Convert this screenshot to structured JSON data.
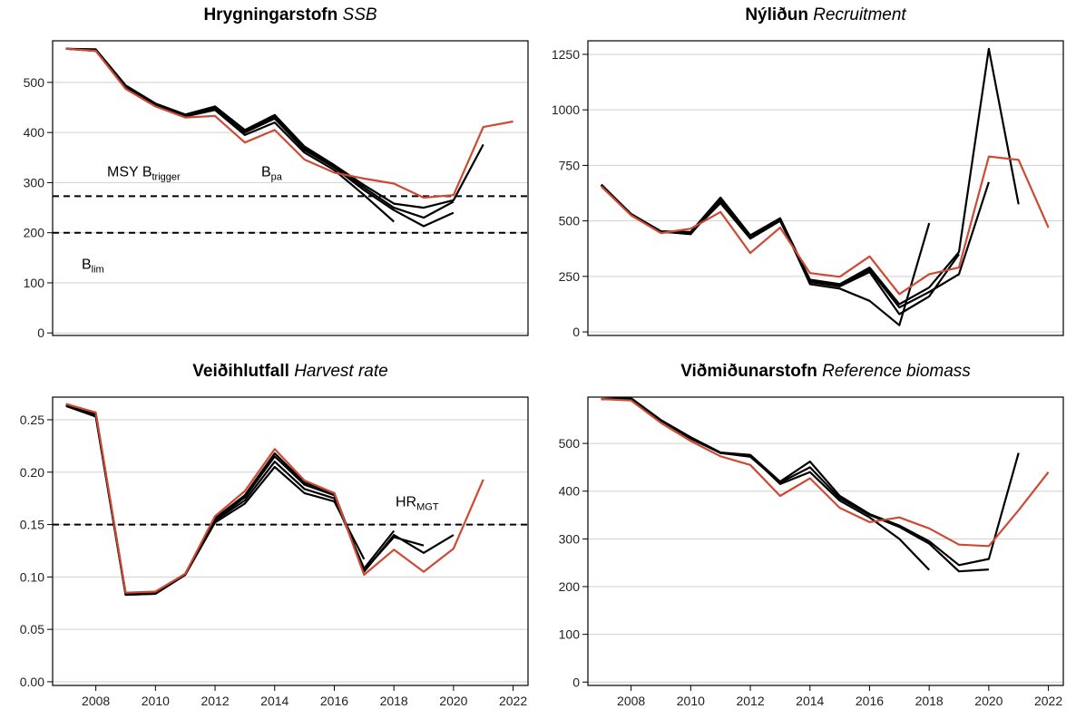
{
  "chart_data": [
    {
      "type": "line",
      "title": "Hrygningarstofn",
      "subtitle": "SSB",
      "x": [
        2007,
        2008,
        2009,
        2010,
        2011,
        2012,
        2013,
        2014,
        2015,
        2016,
        2017,
        2018,
        2019,
        2020,
        2021,
        2022
      ],
      "xlim": [
        2006.55,
        2022.5
      ],
      "ylim": [
        -5,
        583
      ],
      "yticks": [
        0,
        100,
        200,
        300,
        400,
        500
      ],
      "grid": true,
      "series": [
        {
          "color": "#000000",
          "values": [
            567,
            563,
            490,
            455,
            432,
            445,
            395,
            420,
            360,
            325,
            275,
            222,
            null,
            null,
            null,
            null
          ]
        },
        {
          "color": "#000000",
          "values": [
            567,
            564,
            492,
            456,
            434,
            448,
            400,
            428,
            365,
            330,
            285,
            245,
            213,
            240,
            null,
            null
          ]
        },
        {
          "color": "#000000",
          "values": [
            567,
            565,
            493,
            457,
            435,
            450,
            403,
            432,
            368,
            332,
            290,
            250,
            230,
            262,
            null,
            null
          ]
        },
        {
          "color": "#000000",
          "values": [
            567,
            566,
            494,
            458,
            436,
            452,
            405,
            435,
            372,
            335,
            295,
            258,
            250,
            265,
            376,
            null
          ]
        },
        {
          "color": "#cd4a34",
          "values": [
            567,
            563,
            487,
            452,
            430,
            433,
            380,
            405,
            346,
            320,
            308,
            298,
            270,
            275,
            411,
            422
          ]
        }
      ],
      "hlines": [
        {
          "value": 273,
          "labels": [
            {
              "main": "MSY B",
              "sub": "trigger"
            },
            {
              "main": "B",
              "sub": "pa"
            }
          ]
        },
        {
          "value": 200,
          "labels": [
            {
              "main": "B",
              "sub": "lim"
            }
          ]
        }
      ]
    },
    {
      "type": "line",
      "title": "Nýliðun",
      "subtitle": "Recruitment",
      "x": [
        2007,
        2008,
        2009,
        2010,
        2011,
        2012,
        2013,
        2014,
        2015,
        2016,
        2017,
        2018,
        2019,
        2020,
        2021,
        2022
      ],
      "xlim": [
        2006.55,
        2022.5
      ],
      "ylim": [
        -16,
        1311
      ],
      "yticks": [
        0,
        250,
        500,
        750,
        1000,
        1250
      ],
      "grid": true,
      "series": [
        {
          "color": "#000000",
          "values": [
            660,
            530,
            452,
            440,
            600,
            430,
            510,
            215,
            195,
            140,
            30,
            490,
            null,
            null,
            null,
            null
          ]
        },
        {
          "color": "#000000",
          "values": [
            660,
            528,
            450,
            445,
            580,
            420,
            500,
            225,
            205,
            270,
            80,
            160,
            350,
            null,
            null,
            null
          ]
        },
        {
          "color": "#000000",
          "values": [
            662,
            530,
            452,
            448,
            590,
            425,
            505,
            230,
            210,
            280,
            110,
            180,
            260,
            675,
            null,
            null
          ]
        },
        {
          "color": "#000000",
          "values": [
            664,
            531,
            453,
            450,
            605,
            435,
            512,
            235,
            215,
            290,
            125,
            200,
            360,
            1275,
            575,
            null
          ]
        },
        {
          "color": "#cd4a34",
          "values": [
            655,
            525,
            445,
            465,
            540,
            355,
            470,
            265,
            248,
            340,
            170,
            260,
            290,
            790,
            775,
            470
          ]
        }
      ],
      "hlines": []
    },
    {
      "type": "line",
      "title": "Veiðihlutfall",
      "subtitle": "Harvest rate",
      "x": [
        2007,
        2008,
        2009,
        2010,
        2011,
        2012,
        2013,
        2014,
        2015,
        2016,
        2017,
        2018,
        2019,
        2020,
        2021,
        2022
      ],
      "xlim": [
        2006.55,
        2022.5
      ],
      "ylim": [
        -0.0035,
        0.2716
      ],
      "yticks": [
        {
          "value": 0,
          "label": "0.00"
        },
        0.05,
        {
          "value": 0.1,
          "label": "0.10"
        },
        0.15,
        {
          "value": 0.2,
          "label": "0.20"
        },
        0.25
      ],
      "xticks": [
        2008,
        2010,
        2012,
        2014,
        2016,
        2018,
        2020,
        2022
      ],
      "grid": true,
      "series": [
        {
          "color": "#000000",
          "values": [
            0.263,
            0.253,
            0.083,
            0.084,
            0.102,
            0.152,
            0.17,
            0.205,
            0.18,
            0.172,
            0.117,
            null,
            null,
            null,
            null,
            null
          ]
        },
        {
          "color": "#000000",
          "values": [
            0.264,
            0.254,
            0.083,
            0.084,
            0.102,
            0.154,
            0.173,
            0.21,
            0.184,
            0.175,
            0.108,
            0.144,
            null,
            null,
            null,
            null
          ]
        },
        {
          "color": "#000000",
          "values": [
            0.264,
            0.255,
            0.084,
            0.085,
            0.103,
            0.155,
            0.176,
            0.215,
            0.188,
            0.178,
            0.106,
            0.138,
            0.13,
            null,
            null,
            null
          ]
        },
        {
          "color": "#000000",
          "values": [
            0.265,
            0.256,
            0.084,
            0.085,
            0.103,
            0.156,
            0.178,
            0.218,
            0.19,
            0.18,
            0.105,
            0.14,
            0.123,
            0.14,
            null,
            null
          ]
        },
        {
          "color": "#cd4a34",
          "values": [
            0.265,
            0.257,
            0.085,
            0.086,
            0.103,
            0.158,
            0.182,
            0.222,
            0.192,
            0.18,
            0.102,
            0.126,
            0.105,
            0.127,
            0.193,
            null
          ]
        }
      ],
      "hlines": [
        {
          "value": 0.15,
          "labels": [
            {
              "main": "HR",
              "sub": "MGT"
            }
          ]
        }
      ]
    },
    {
      "type": "line",
      "title": "Viðmiðunarstofn",
      "subtitle": "Reference biomass",
      "x": [
        2007,
        2008,
        2009,
        2010,
        2011,
        2012,
        2013,
        2014,
        2015,
        2016,
        2017,
        2018,
        2019,
        2020,
        2021,
        2022
      ],
      "xlim": [
        2006.55,
        2022.5
      ],
      "ylim": [
        -7,
        597
      ],
      "yticks": [
        0,
        100,
        200,
        300,
        400,
        500
      ],
      "xticks": [
        2008,
        2010,
        2012,
        2014,
        2016,
        2018,
        2020,
        2022
      ],
      "grid": true,
      "series": [
        {
          "color": "#000000",
          "values": [
            593,
            593,
            548,
            510,
            480,
            475,
            415,
            440,
            380,
            345,
            300,
            235,
            null,
            null,
            null,
            null
          ]
        },
        {
          "color": "#000000",
          "values": [
            593,
            594,
            548,
            512,
            480,
            472,
            418,
            450,
            385,
            350,
            325,
            290,
            232,
            236,
            null,
            null
          ]
        },
        {
          "color": "#000000",
          "values": [
            593,
            595,
            549,
            513,
            481,
            476,
            420,
            462,
            390,
            352,
            328,
            295,
            245,
            258,
            480,
            null
          ]
        },
        {
          "color": "#cd4a34",
          "values": [
            593,
            590,
            543,
            505,
            473,
            455,
            390,
            427,
            365,
            335,
            345,
            322,
            288,
            285,
            360,
            440
          ]
        }
      ],
      "hlines": []
    }
  ]
}
